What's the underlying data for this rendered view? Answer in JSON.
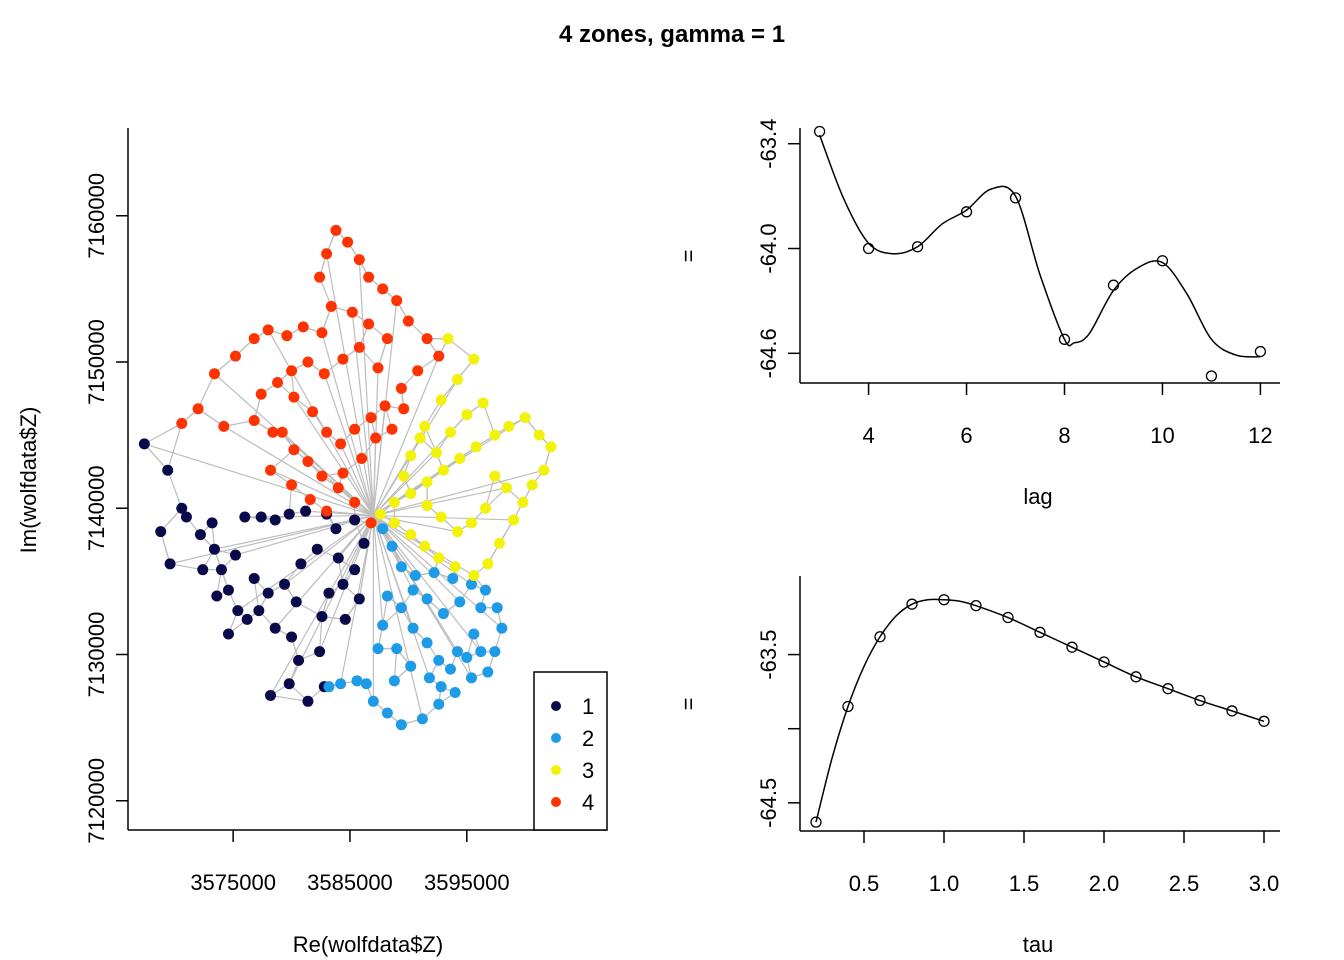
{
  "title": "4 zones, gamma = 1",
  "chart_data": [
    {
      "type": "scatter",
      "xlabel": "Re(wolfdata$Z)",
      "ylabel": "Im(wolfdata$Z)",
      "xlim": [
        3566000,
        3607000
      ],
      "ylim": [
        7118000,
        7166000
      ],
      "xticks": [
        3575000,
        3585000,
        3595000
      ],
      "yticks": [
        7120000,
        7130000,
        7140000,
        7150000,
        7160000
      ],
      "center": [
        3587000,
        7139500
      ],
      "legend": {
        "placement": "bottom-right",
        "entries": [
          {
            "label": "1",
            "color": "#0a0a4a"
          },
          {
            "label": "2",
            "color": "#1e9be6"
          },
          {
            "label": "3",
            "color": "#f2f20a"
          },
          {
            "label": "4",
            "color": "#ff3300"
          }
        ]
      },
      "edge_color": "#bdbdbd",
      "series": [
        {
          "zone": "1",
          "color": "#0a0a4a",
          "points": [
            [
              3567400,
              7144400
            ],
            [
              3569400,
              7142600
            ],
            [
              3568800,
              7138400
            ],
            [
              3569600,
              7136200
            ],
            [
              3571000,
              7139400
            ],
            [
              3572200,
              7138200
            ],
            [
              3573400,
              7137200
            ],
            [
              3574000,
              7135800
            ],
            [
              3574600,
              7134400
            ],
            [
              3575400,
              7133000
            ],
            [
              3576200,
              7132400
            ],
            [
              3576000,
              7139400
            ],
            [
              3577400,
              7139400
            ],
            [
              3578600,
              7139200
            ],
            [
              3579800,
              7139600
            ],
            [
              3581200,
              7139800
            ],
            [
              3583000,
              7139600
            ],
            [
              3583800,
              7138600
            ],
            [
              3584000,
              7136600
            ],
            [
              3582200,
              7137200
            ],
            [
              3580800,
              7136200
            ],
            [
              3579400,
              7134800
            ],
            [
              3578000,
              7134200
            ],
            [
              3577200,
              7133000
            ],
            [
              3578600,
              7131800
            ],
            [
              3580000,
              7131200
            ],
            [
              3580600,
              7129600
            ],
            [
              3579800,
              7128000
            ],
            [
              3581400,
              7126800
            ],
            [
              3582800,
              7127800
            ],
            [
              3582400,
              7130200
            ],
            [
              3582600,
              7132600
            ],
            [
              3583200,
              7134200
            ],
            [
              3584400,
              7134800
            ],
            [
              3585400,
              7135800
            ],
            [
              3586200,
              7137600
            ],
            [
              3585400,
              7139200
            ],
            [
              3572400,
              7135800
            ],
            [
              3573600,
              7134000
            ],
            [
              3575200,
              7136800
            ],
            [
              3576800,
              7135200
            ],
            [
              3574600,
              7131400
            ],
            [
              3578200,
              7127200
            ],
            [
              3580400,
              7133600
            ],
            [
              3584600,
              7132400
            ],
            [
              3585800,
              7133800
            ],
            [
              3570600,
              7140000
            ],
            [
              3573200,
              7139000
            ]
          ]
        },
        {
          "zone": "2",
          "color": "#1e9be6",
          "points": [
            [
              3587800,
              7138600
            ],
            [
              3588600,
              7137400
            ],
            [
              3589400,
              7136000
            ],
            [
              3590600,
              7135400
            ],
            [
              3592200,
              7135600
            ],
            [
              3593800,
              7135200
            ],
            [
              3595400,
              7134800
            ],
            [
              3596600,
              7134400
            ],
            [
              3597600,
              7133200
            ],
            [
              3598000,
              7131800
            ],
            [
              3597400,
              7130200
            ],
            [
              3596800,
              7128800
            ],
            [
              3595400,
              7128400
            ],
            [
              3594000,
              7127400
            ],
            [
              3592600,
              7126600
            ],
            [
              3591200,
              7125600
            ],
            [
              3589400,
              7125200
            ],
            [
              3588200,
              7126000
            ],
            [
              3587000,
              7126800
            ],
            [
              3586400,
              7128000
            ],
            [
              3585600,
              7128200
            ],
            [
              3584200,
              7128000
            ],
            [
              3583200,
              7127800
            ],
            [
              3587400,
              7130400
            ],
            [
              3587800,
              7132000
            ],
            [
              3588200,
              7134000
            ],
            [
              3589400,
              7133200
            ],
            [
              3590400,
              7131800
            ],
            [
              3591600,
              7130800
            ],
            [
              3592600,
              7129600
            ],
            [
              3594200,
              7130200
            ],
            [
              3595600,
              7131400
            ],
            [
              3596200,
              7133200
            ],
            [
              3594400,
              7133600
            ],
            [
              3593000,
              7132800
            ],
            [
              3591600,
              7133800
            ],
            [
              3590400,
              7134400
            ],
            [
              3589000,
              7130400
            ],
            [
              3590200,
              7129200
            ],
            [
              3591800,
              7128400
            ],
            [
              3593600,
              7129000
            ],
            [
              3595000,
              7129800
            ],
            [
              3596200,
              7130200
            ],
            [
              3592800,
              7127800
            ],
            [
              3588800,
              7128200
            ]
          ]
        },
        {
          "zone": "3",
          "color": "#f2f20a",
          "points": [
            [
              3587600,
              7139600
            ],
            [
              3588800,
              7140400
            ],
            [
              3590200,
              7141000
            ],
            [
              3591600,
              7141800
            ],
            [
              3593000,
              7142600
            ],
            [
              3594400,
              7143400
            ],
            [
              3595800,
              7144200
            ],
            [
              3597400,
              7145000
            ],
            [
              3598600,
              7145600
            ],
            [
              3600000,
              7146200
            ],
            [
              3601200,
              7145000
            ],
            [
              3602200,
              7144200
            ],
            [
              3601600,
              7142600
            ],
            [
              3600600,
              7141600
            ],
            [
              3599800,
              7140400
            ],
            [
              3599000,
              7139200
            ],
            [
              3597800,
              7137600
            ],
            [
              3596800,
              7136200
            ],
            [
              3595600,
              7135400
            ],
            [
              3594000,
              7136000
            ],
            [
              3592600,
              7136600
            ],
            [
              3591400,
              7137400
            ],
            [
              3590200,
              7138200
            ],
            [
              3588800,
              7139000
            ],
            [
              3590200,
              7143600
            ],
            [
              3591400,
              7145600
            ],
            [
              3592800,
              7147400
            ],
            [
              3594200,
              7148800
            ],
            [
              3595600,
              7150200
            ],
            [
              3593400,
              7151600
            ],
            [
              3595000,
              7146400
            ],
            [
              3596400,
              7147200
            ],
            [
              3597400,
              7142200
            ],
            [
              3598400,
              7141400
            ],
            [
              3596600,
              7140000
            ],
            [
              3595400,
              7139000
            ],
            [
              3594200,
              7138400
            ],
            [
              3592800,
              7139400
            ],
            [
              3591600,
              7140200
            ],
            [
              3592400,
              7143800
            ],
            [
              3593600,
              7145200
            ],
            [
              3589600,
              7142200
            ],
            [
              3591000,
              7144800
            ]
          ]
        },
        {
          "zone": "4",
          "color": "#ff3300",
          "points": [
            [
              3586800,
              7139000
            ],
            [
              3585400,
              7140400
            ],
            [
              3584000,
              7141400
            ],
            [
              3582600,
              7142200
            ],
            [
              3581400,
              7143200
            ],
            [
              3580200,
              7144000
            ],
            [
              3578400,
              7145200
            ],
            [
              3576800,
              7146000
            ],
            [
              3574200,
              7145600
            ],
            [
              3572000,
              7146800
            ],
            [
              3570600,
              7145800
            ],
            [
              3573400,
              7149200
            ],
            [
              3575200,
              7150400
            ],
            [
              3576800,
              7151600
            ],
            [
              3578000,
              7152200
            ],
            [
              3579600,
              7151800
            ],
            [
              3581000,
              7152400
            ],
            [
              3582600,
              7152000
            ],
            [
              3583400,
              7153800
            ],
            [
              3582400,
              7155800
            ],
            [
              3583000,
              7157400
            ],
            [
              3583800,
              7159000
            ],
            [
              3584800,
              7158200
            ],
            [
              3585800,
              7157000
            ],
            [
              3586600,
              7155800
            ],
            [
              3587800,
              7155000
            ],
            [
              3589000,
              7154200
            ],
            [
              3590000,
              7152800
            ],
            [
              3591600,
              7151600
            ],
            [
              3592600,
              7150400
            ],
            [
              3590800,
              7149400
            ],
            [
              3589400,
              7148200
            ],
            [
              3588000,
              7147000
            ],
            [
              3586800,
              7146200
            ],
            [
              3585400,
              7145400
            ],
            [
              3584200,
              7144400
            ],
            [
              3583000,
              7145200
            ],
            [
              3581800,
              7146600
            ],
            [
              3580200,
              7147600
            ],
            [
              3578800,
              7148600
            ],
            [
              3577400,
              7147800
            ],
            [
              3578200,
              7142600
            ],
            [
              3580000,
              7141600
            ],
            [
              3581600,
              7140600
            ],
            [
              3583000,
              7139800
            ],
            [
              3584400,
              7142400
            ],
            [
              3586000,
              7143400
            ],
            [
              3587200,
              7144800
            ],
            [
              3588600,
              7145400
            ],
            [
              3589600,
              7146800
            ],
            [
              3587400,
              7149600
            ],
            [
              3585800,
              7151000
            ],
            [
              3584400,
              7150200
            ],
            [
              3582800,
              7149200
            ],
            [
              3581400,
              7150000
            ],
            [
              3580000,
              7149400
            ],
            [
              3585200,
              7153400
            ],
            [
              3586600,
              7152600
            ],
            [
              3588200,
              7151600
            ],
            [
              3579200,
              7145200
            ]
          ]
        }
      ]
    },
    {
      "type": "line",
      "xlabel": "lag",
      "ylabel": "",
      "xlim": [
        2.6,
        12.4
      ],
      "ylim": [
        -64.77,
        -63.31
      ],
      "xticks": [
        4,
        6,
        8,
        10,
        12
      ],
      "yticks": [
        -63.4,
        -64.0,
        -64.6
      ],
      "ytick_labels": [
        "-63.4",
        "-64.0",
        "-64.6"
      ],
      "y_side_label": "=",
      "x": [
        3,
        4,
        5,
        6,
        7,
        8,
        9,
        10,
        11,
        12
      ],
      "y": [
        -63.33,
        -64.0,
        -63.99,
        -63.79,
        -63.71,
        -64.52,
        -64.21,
        -64.07,
        -64.73,
        -64.59
      ],
      "curve": {
        "x": [
          3,
          3.5,
          4,
          4.5,
          5,
          5.5,
          6,
          6.5,
          7,
          7.5,
          8,
          8.2,
          8.5,
          9,
          9.5,
          10,
          10.5,
          11,
          11.5,
          12
        ],
        "y": [
          -63.35,
          -63.72,
          -63.97,
          -64.03,
          -63.99,
          -63.86,
          -63.78,
          -63.66,
          -63.7,
          -64.15,
          -64.52,
          -64.54,
          -64.49,
          -64.24,
          -64.11,
          -64.08,
          -64.26,
          -64.52,
          -64.61,
          -64.62
        ]
      }
    },
    {
      "type": "line",
      "xlabel": "tau",
      "ylabel": "",
      "xlim": [
        0.1,
        3.1
      ],
      "ylim": [
        -64.69,
        -62.97
      ],
      "xticks": [
        0.5,
        1.0,
        1.5,
        2.0,
        2.5,
        3.0
      ],
      "xtick_labels": [
        "0.5",
        "1.0",
        "1.5",
        "2.0",
        "2.5",
        "3.0"
      ],
      "yticks": [
        -63.5,
        -64.0,
        -64.5
      ],
      "ytick_labels": [
        "-63.5",
        "",
        "-64.5"
      ],
      "y_side_label": "=",
      "x": [
        0.2,
        0.4,
        0.6,
        0.8,
        1.0,
        1.2,
        1.4,
        1.6,
        1.8,
        2.0,
        2.2,
        2.4,
        2.6,
        2.8,
        3.0
      ],
      "y": [
        -64.63,
        -63.85,
        -63.38,
        -63.16,
        -63.13,
        -63.17,
        -63.25,
        -63.35,
        -63.45,
        -63.55,
        -63.65,
        -63.73,
        -63.81,
        -63.88,
        -63.95
      ],
      "curve": {
        "x": [
          0.2,
          0.3,
          0.4,
          0.5,
          0.6,
          0.7,
          0.8,
          0.9,
          1.0,
          1.1,
          1.2,
          1.4,
          1.6,
          1.8,
          2.0,
          2.2,
          2.4,
          2.6,
          2.8,
          3.0
        ],
        "y": [
          -64.63,
          -64.2,
          -63.85,
          -63.58,
          -63.38,
          -63.24,
          -63.16,
          -63.13,
          -63.13,
          -63.14,
          -63.17,
          -63.25,
          -63.35,
          -63.45,
          -63.55,
          -63.65,
          -63.73,
          -63.81,
          -63.88,
          -63.95
        ]
      }
    }
  ]
}
